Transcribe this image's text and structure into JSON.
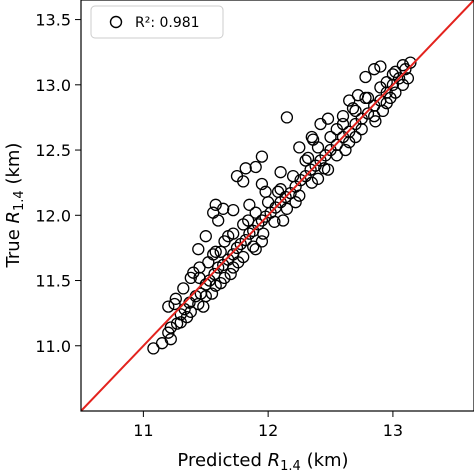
{
  "chart_data": {
    "type": "scatter",
    "title": "",
    "xlabel": "Predicted R_1.4 (km)",
    "ylabel": "True R_1.4 (km)",
    "xlabel_parts": {
      "pre": "Predicted ",
      "sym": "R",
      "sub": "1.4",
      "post": " (km)"
    },
    "ylabel_parts": {
      "pre": "True ",
      "sym": "R",
      "sub": "1.4",
      "post": " (km)"
    },
    "xlim": [
      10.5,
      13.65
    ],
    "ylim": [
      10.5,
      13.65
    ],
    "x_ticks": [
      11,
      12,
      13
    ],
    "x_tick_labels": [
      "11",
      "12",
      "13"
    ],
    "y_ticks": [
      11.0,
      11.5,
      12.0,
      12.5,
      13.0,
      13.5
    ],
    "y_tick_labels": [
      "11.0",
      "11.5",
      "12.0",
      "12.5",
      "13.0",
      "13.5"
    ],
    "grid": false,
    "legend": {
      "placement": "top-left",
      "entries": [
        {
          "marker": "open-circle",
          "label": "R²: 0.981"
        }
      ]
    },
    "reference_line": {
      "type": "identity",
      "x": [
        10.5,
        13.65
      ],
      "y": [
        10.5,
        13.65
      ],
      "color": "#e3231e"
    },
    "series": [
      {
        "marker": "open-circle",
        "color": "#000000",
        "points": [
          [
            11.08,
            10.98
          ],
          [
            11.15,
            11.02
          ],
          [
            11.2,
            11.1
          ],
          [
            11.22,
            11.14
          ],
          [
            11.27,
            11.17
          ],
          [
            11.3,
            11.24
          ],
          [
            11.33,
            11.28
          ],
          [
            11.37,
            11.33
          ],
          [
            11.42,
            11.38
          ],
          [
            11.46,
            11.4
          ],
          [
            11.5,
            11.47
          ],
          [
            11.53,
            11.5
          ],
          [
            11.57,
            11.55
          ],
          [
            11.6,
            11.6
          ],
          [
            11.64,
            11.62
          ],
          [
            11.68,
            11.66
          ],
          [
            11.72,
            11.7
          ],
          [
            11.75,
            11.75
          ],
          [
            11.78,
            11.78
          ],
          [
            11.82,
            11.81
          ],
          [
            11.85,
            11.86
          ],
          [
            11.88,
            11.88
          ],
          [
            11.92,
            11.93
          ],
          [
            11.95,
            11.96
          ],
          [
            11.98,
            11.99
          ],
          [
            12.02,
            12.02
          ],
          [
            12.06,
            12.06
          ],
          [
            12.1,
            12.1
          ],
          [
            12.14,
            12.14
          ],
          [
            12.18,
            12.17
          ],
          [
            12.22,
            12.22
          ],
          [
            12.26,
            12.27
          ],
          [
            12.3,
            12.3
          ],
          [
            12.34,
            12.35
          ],
          [
            12.38,
            12.38
          ],
          [
            12.42,
            12.42
          ],
          [
            12.46,
            12.46
          ],
          [
            12.5,
            12.5
          ],
          [
            12.55,
            12.54
          ],
          [
            12.6,
            12.6
          ],
          [
            12.65,
            12.64
          ],
          [
            12.7,
            12.7
          ],
          [
            12.75,
            12.74
          ],
          [
            12.8,
            12.78
          ],
          [
            12.85,
            12.84
          ],
          [
            12.9,
            12.88
          ],
          [
            12.95,
            12.94
          ],
          [
            13.0,
            13.0
          ],
          [
            13.05,
            13.05
          ],
          [
            13.1,
            13.12
          ],
          [
            13.14,
            13.17
          ],
          [
            11.2,
            11.3
          ],
          [
            11.26,
            11.36
          ],
          [
            11.32,
            11.44
          ],
          [
            11.38,
            11.52
          ],
          [
            11.45,
            11.6
          ],
          [
            11.52,
            11.64
          ],
          [
            11.58,
            11.72
          ],
          [
            11.65,
            11.8
          ],
          [
            11.72,
            11.86
          ],
          [
            11.8,
            11.93
          ],
          [
            11.9,
            12.02
          ],
          [
            12.0,
            12.1
          ],
          [
            12.1,
            12.2
          ],
          [
            12.2,
            12.3
          ],
          [
            12.3,
            12.42
          ],
          [
            12.4,
            12.52
          ],
          [
            12.5,
            12.6
          ],
          [
            12.6,
            12.7
          ],
          [
            12.7,
            12.8
          ],
          [
            12.8,
            12.9
          ],
          [
            12.9,
            12.98
          ],
          [
            13.0,
            13.08
          ],
          [
            13.08,
            13.15
          ],
          [
            11.3,
            11.18
          ],
          [
            11.38,
            11.26
          ],
          [
            11.44,
            11.32
          ],
          [
            11.5,
            11.38
          ],
          [
            11.58,
            11.46
          ],
          [
            11.65,
            11.52
          ],
          [
            11.72,
            11.6
          ],
          [
            11.8,
            11.68
          ],
          [
            11.88,
            11.76
          ],
          [
            11.96,
            11.86
          ],
          [
            12.05,
            11.95
          ],
          [
            12.15,
            12.05
          ],
          [
            12.25,
            12.15
          ],
          [
            12.35,
            12.25
          ],
          [
            12.45,
            12.36
          ],
          [
            12.55,
            12.46
          ],
          [
            12.65,
            12.56
          ],
          [
            12.75,
            12.66
          ],
          [
            12.85,
            12.76
          ],
          [
            12.95,
            12.86
          ],
          [
            13.02,
            12.94
          ],
          [
            13.08,
            13.0
          ],
          [
            11.55,
            11.4
          ],
          [
            11.62,
            11.48
          ],
          [
            11.7,
            11.55
          ],
          [
            11.9,
            11.74
          ],
          [
            12.12,
            11.96
          ],
          [
            12.4,
            12.28
          ],
          [
            12.62,
            12.5
          ],
          [
            12.86,
            12.72
          ],
          [
            12.98,
            12.9
          ],
          [
            11.45,
            11.52
          ],
          [
            11.62,
            11.72
          ],
          [
            11.84,
            11.96
          ],
          [
            12.08,
            12.18
          ],
          [
            12.32,
            12.44
          ],
          [
            12.55,
            12.66
          ],
          [
            12.78,
            12.9
          ],
          [
            12.95,
            13.02
          ],
          [
            11.22,
            11.05
          ],
          [
            11.25,
            11.32
          ],
          [
            11.35,
            11.22
          ],
          [
            11.48,
            11.3
          ],
          [
            11.4,
            11.56
          ],
          [
            11.56,
            11.7
          ],
          [
            11.68,
            11.84
          ],
          [
            11.76,
            11.64
          ],
          [
            11.95,
            11.8
          ],
          [
            12.22,
            12.1
          ],
          [
            12.48,
            12.35
          ],
          [
            12.7,
            12.6
          ],
          [
            12.92,
            12.8
          ],
          [
            13.02,
            13.1
          ],
          [
            13.12,
            13.05
          ],
          [
            12.6,
            12.76
          ],
          [
            12.68,
            12.82
          ],
          [
            12.48,
            12.74
          ],
          [
            12.36,
            12.58
          ],
          [
            12.42,
            12.7
          ],
          [
            12.9,
            13.14
          ],
          [
            12.78,
            13.06
          ],
          [
            12.85,
            13.12
          ],
          [
            12.72,
            12.92
          ],
          [
            12.65,
            12.88
          ],
          [
            12.15,
            12.75
          ],
          [
            12.35,
            12.6
          ],
          [
            11.95,
            12.45
          ],
          [
            11.9,
            12.37
          ],
          [
            11.82,
            12.36
          ],
          [
            11.75,
            12.3
          ],
          [
            11.8,
            12.26
          ],
          [
            11.95,
            12.24
          ],
          [
            11.98,
            12.18
          ],
          [
            12.1,
            12.33
          ],
          [
            11.58,
            12.08
          ],
          [
            11.64,
            12.05
          ],
          [
            11.56,
            12.02
          ],
          [
            11.72,
            12.04
          ],
          [
            11.85,
            12.08
          ],
          [
            11.6,
            11.96
          ],
          [
            11.5,
            11.84
          ],
          [
            11.44,
            11.74
          ],
          [
            12.25,
            12.52
          ]
        ]
      }
    ]
  }
}
